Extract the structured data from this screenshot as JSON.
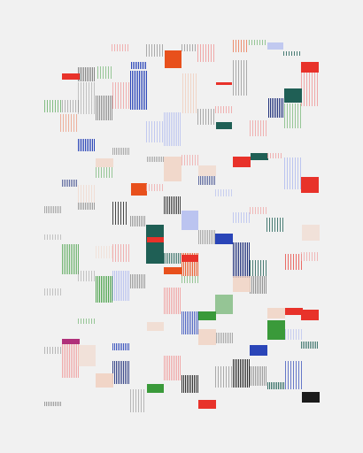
{
  "artwork": {
    "background": "#f1f1f1",
    "palette": {
      "red": "#e8322a",
      "orange": "#e8501c",
      "blue": "#2a45b8",
      "navy": "#23337d",
      "teal": "#1f5f55",
      "green": "#3a9a3a",
      "pink": "#f0a0a0",
      "peach": "#f1d2c2",
      "gray": "#7a7a7a",
      "black": "#1b1b1b",
      "lavender": "#b5bff0"
    }
  }
}
